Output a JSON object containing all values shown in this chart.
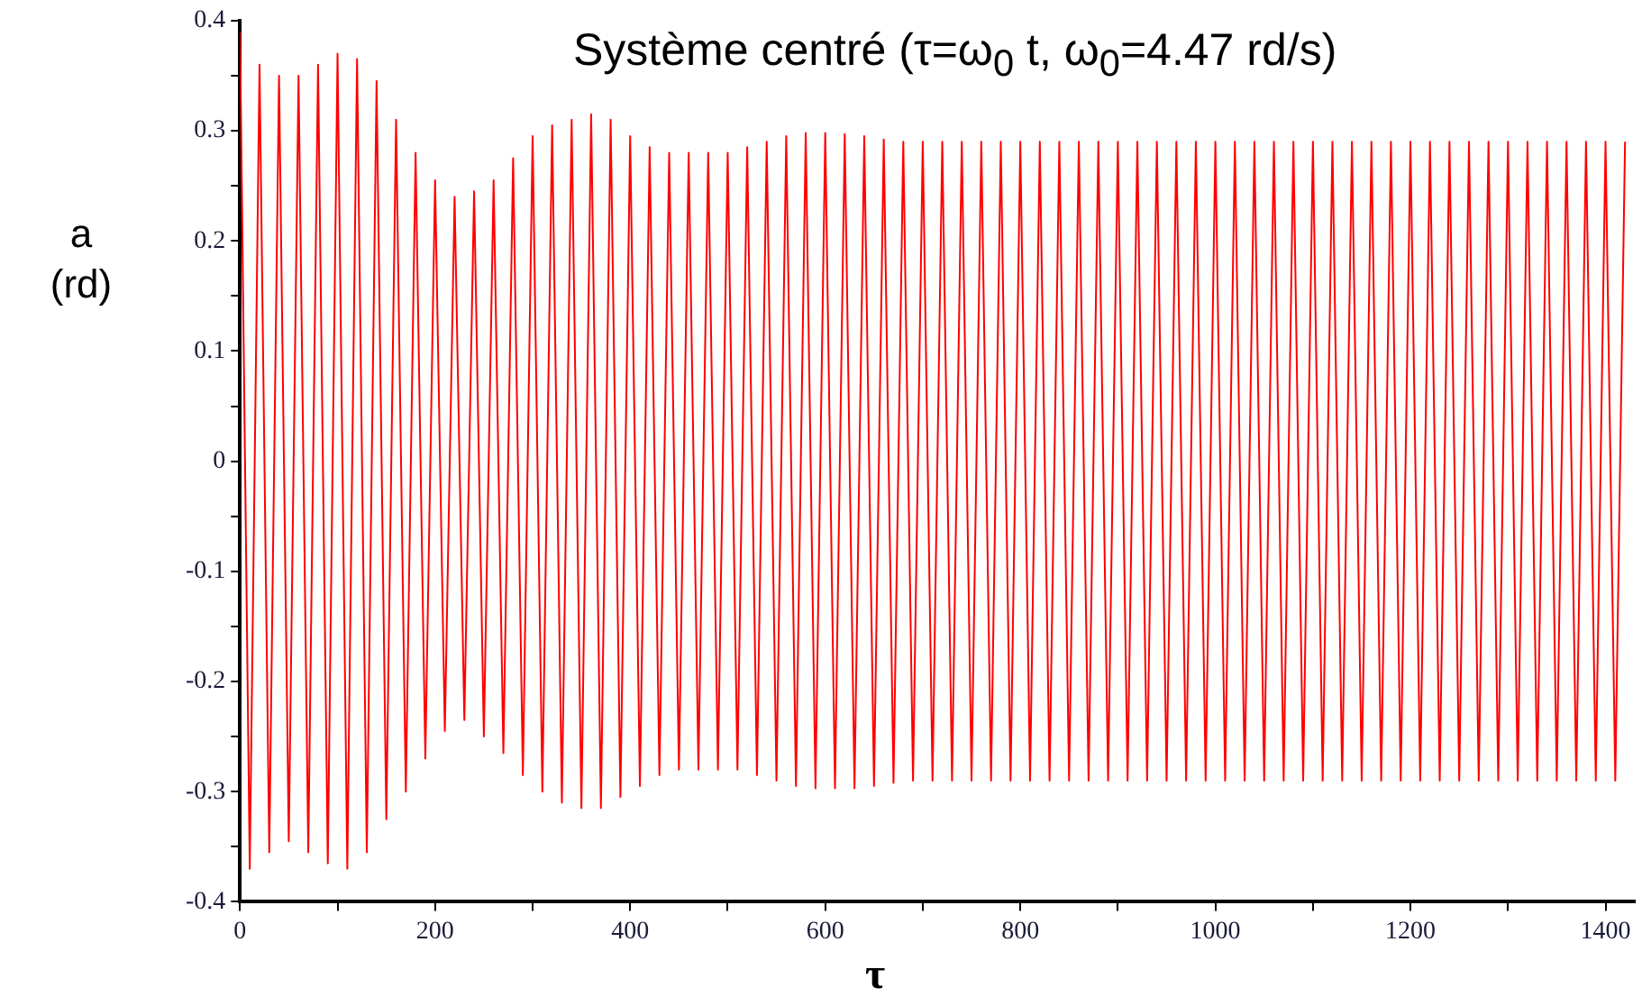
{
  "chart_data": {
    "type": "line",
    "title": "Système centré (τ=ω$_{0}$ t, ω$_{0}$=4.47 rd/s)",
    "xlabel": "τ",
    "ylabel": "a\n(rd)",
    "xlim": [
      0,
      1430
    ],
    "ylim": [
      -0.4,
      0.4
    ],
    "xticks": [
      0,
      {
        "value": 100,
        "label": null
      },
      200,
      {
        "value": 300,
        "label": null
      },
      400,
      {
        "value": 500,
        "label": null
      },
      600,
      {
        "value": 700,
        "label": null
      },
      800,
      {
        "value": 900,
        "label": null
      },
      1000,
      {
        "value": 1100,
        "label": null
      },
      1200,
      {
        "value": 1300,
        "label": null
      },
      1400
    ],
    "yticks": [
      -0.4,
      {
        "value": -0.35,
        "label": null
      },
      -0.3,
      {
        "value": -0.25,
        "label": null
      },
      -0.2,
      {
        "value": -0.15,
        "label": null
      },
      -0.1,
      {
        "value": -0.05,
        "label": null
      },
      0,
      {
        "value": 0.05,
        "label": null
      },
      0.1,
      {
        "value": 0.15,
        "label": null
      },
      0.2,
      {
        "value": 0.25,
        "label": null
      },
      0.3,
      {
        "value": 0.35,
        "label": null
      },
      0.4
    ],
    "grid": false,
    "legend": false,
    "marker": "none",
    "line_style": "solid",
    "x": [
      0,
      10,
      20,
      30,
      40,
      50,
      60,
      70,
      80,
      90,
      100,
      110,
      120,
      130,
      140,
      150,
      160,
      170,
      180,
      190,
      200,
      210,
      220,
      230,
      240,
      250,
      260,
      270,
      280,
      290,
      300,
      310,
      320,
      330,
      340,
      350,
      360,
      370,
      380,
      390,
      400,
      410,
      420,
      430,
      440,
      450,
      460,
      470,
      480,
      490,
      500,
      510,
      520,
      530,
      540,
      550,
      560,
      570,
      580,
      590,
      600,
      610,
      620,
      630,
      640,
      650,
      660,
      670,
      680,
      690,
      700,
      710,
      720,
      730,
      740,
      750,
      760,
      770,
      780,
      790,
      800,
      810,
      820,
      830,
      840,
      850,
      860,
      870,
      880,
      890,
      900,
      910,
      920,
      930,
      940,
      950,
      960,
      970,
      980,
      990,
      1000,
      1010,
      1020,
      1030,
      1040,
      1050,
      1060,
      1070,
      1080,
      1090,
      1100,
      1110,
      1120,
      1130,
      1140,
      1150,
      1160,
      1170,
      1180,
      1190,
      1200,
      1210,
      1220,
      1230,
      1240,
      1250,
      1260,
      1270,
      1280,
      1290,
      1300,
      1310,
      1320,
      1330,
      1340,
      1350,
      1360,
      1370,
      1380,
      1390,
      1400,
      1410,
      1420
    ],
    "series": [
      {
        "color": "#ff0000",
        "values": [
          0.39,
          -0.37,
          0.36,
          -0.355,
          0.35,
          -0.345,
          0.35,
          -0.355,
          0.36,
          -0.365,
          0.37,
          -0.37,
          0.365,
          -0.355,
          0.345,
          -0.325,
          0.31,
          -0.3,
          0.28,
          -0.27,
          0.255,
          -0.245,
          0.24,
          -0.235,
          0.245,
          -0.25,
          0.255,
          -0.265,
          0.275,
          -0.285,
          0.295,
          -0.3,
          0.305,
          -0.31,
          0.31,
          -0.315,
          0.315,
          -0.315,
          0.31,
          -0.305,
          0.295,
          -0.295,
          0.285,
          -0.285,
          0.28,
          -0.28,
          0.28,
          -0.28,
          0.28,
          -0.28,
          0.28,
          -0.28,
          0.285,
          -0.285,
          0.29,
          -0.29,
          0.295,
          -0.295,
          0.298,
          -0.297,
          0.298,
          -0.297,
          0.297,
          -0.297,
          0.295,
          -0.295,
          0.292,
          -0.292,
          0.29,
          -0.29,
          0.29,
          -0.29,
          0.29,
          -0.29,
          0.29,
          -0.29,
          0.29,
          -0.29,
          0.29,
          -0.29,
          0.29,
          -0.29,
          0.29,
          -0.29,
          0.29,
          -0.29,
          0.29,
          -0.29,
          0.29,
          -0.29,
          0.29,
          -0.29,
          0.29,
          -0.29,
          0.29,
          -0.29,
          0.29,
          -0.29,
          0.29,
          -0.29,
          0.29,
          -0.29,
          0.29,
          -0.29,
          0.29,
          -0.29,
          0.29,
          -0.29,
          0.29,
          -0.29,
          0.29,
          -0.29,
          0.29,
          -0.29,
          0.29,
          -0.29,
          0.29,
          -0.29,
          0.29,
          -0.29,
          0.29,
          -0.29,
          0.29,
          -0.29,
          0.29,
          -0.29,
          0.29,
          -0.29,
          0.29,
          -0.29,
          0.29,
          -0.29,
          0.29,
          -0.29,
          0.29,
          -0.29,
          0.29,
          -0.29,
          0.29,
          -0.29,
          0.29,
          -0.29,
          0.29
        ]
      }
    ]
  }
}
